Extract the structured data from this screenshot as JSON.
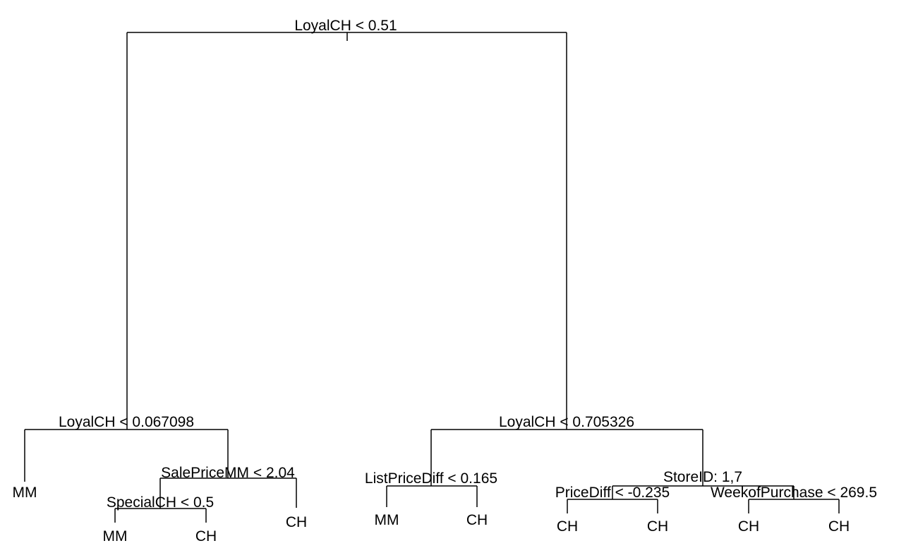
{
  "tree": {
    "line_color": "#000000",
    "background": "#ffffff",
    "splits": [
      {
        "id": "n1",
        "label": "LoyalCH < 0.51",
        "left": "n2",
        "right": "n3"
      },
      {
        "id": "n2",
        "label": "LoyalCH < 0.067098",
        "left": "leaf_mm_1",
        "right": "n4"
      },
      {
        "id": "n4",
        "label": "SalePriceMM < 2.04",
        "left": "n5",
        "right": "leaf_ch_1"
      },
      {
        "id": "n5",
        "label": "SpecialCH < 0.5",
        "left": "leaf_mm_2",
        "right": "leaf_ch_2"
      },
      {
        "id": "n3",
        "label": "LoyalCH < 0.705326",
        "left": "n6",
        "right": "n7"
      },
      {
        "id": "n6",
        "label": "ListPriceDiff < 0.165",
        "left": "leaf_mm_3",
        "right": "leaf_ch_3"
      },
      {
        "id": "n7",
        "label": "StoreID: 1,7",
        "left": "n8",
        "right": "n9"
      },
      {
        "id": "n8",
        "label": "PriceDiff < -0.235",
        "left": "leaf_ch_4",
        "right": "leaf_ch_5"
      },
      {
        "id": "n9",
        "label": "WeekofPurchase < 269.5",
        "left": "leaf_ch_6",
        "right": "leaf_ch_7"
      }
    ],
    "leaves": [
      {
        "id": "leaf_mm_1",
        "label": "MM"
      },
      {
        "id": "leaf_mm_2",
        "label": "MM"
      },
      {
        "id": "leaf_ch_2",
        "label": "CH"
      },
      {
        "id": "leaf_ch_1",
        "label": "CH"
      },
      {
        "id": "leaf_mm_3",
        "label": "MM"
      },
      {
        "id": "leaf_ch_3",
        "label": "CH"
      },
      {
        "id": "leaf_ch_4",
        "label": "CH"
      },
      {
        "id": "leaf_ch_5",
        "label": "CH"
      },
      {
        "id": "leaf_ch_6",
        "label": "CH"
      },
      {
        "id": "leaf_ch_7",
        "label": "CH"
      }
    ]
  }
}
